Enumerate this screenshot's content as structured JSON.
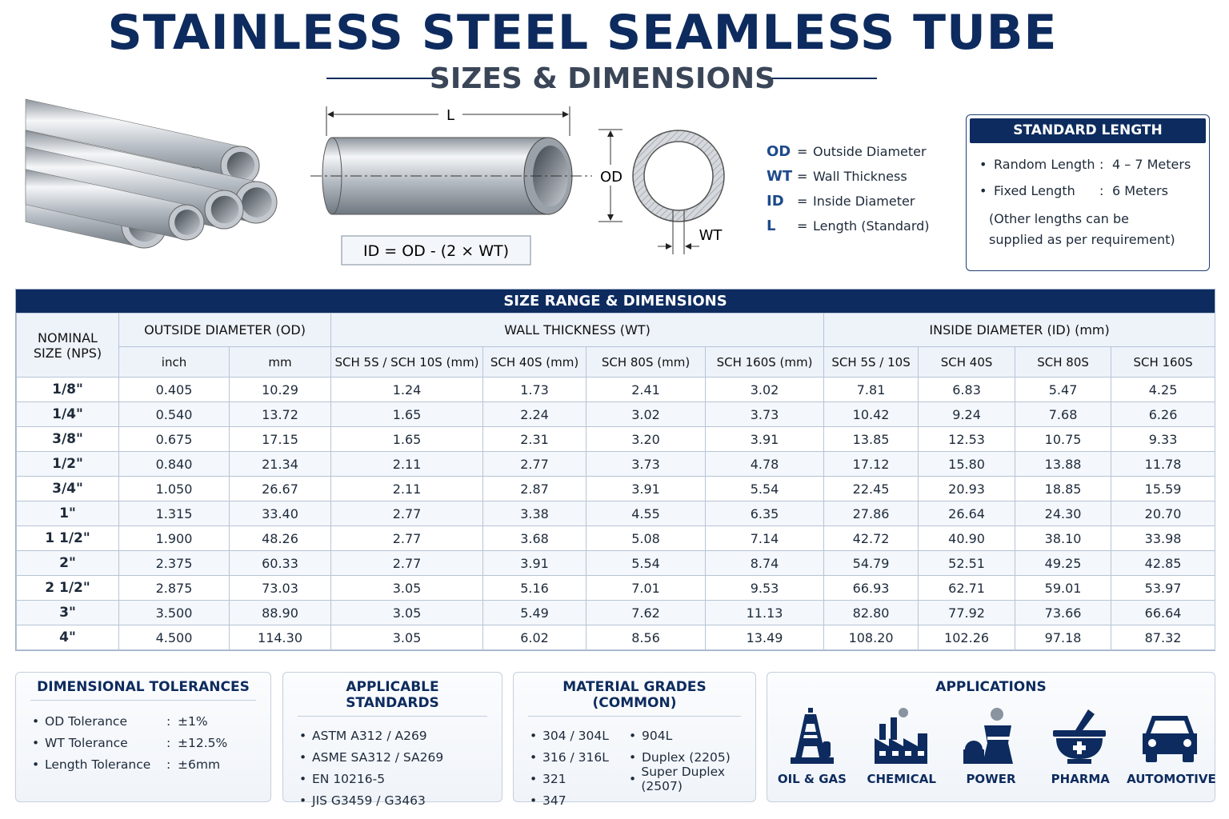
{
  "header": {
    "title": "STAINLESS STEEL SEAMLESS TUBE",
    "subtitle": "SIZES & DIMENSIONS"
  },
  "diagram": {
    "length_label": "L",
    "od_label": "OD",
    "wt_label": "WT",
    "formula": "ID = OD - (2 × WT)"
  },
  "legend": [
    {
      "abbr": "OD",
      "sign": "=",
      "text": "Outside Diameter"
    },
    {
      "abbr": "WT",
      "sign": "=",
      "text": "Wall Thickness"
    },
    {
      "abbr": "ID",
      "sign": "=",
      "text": "Inside Diameter"
    },
    {
      "abbr": "L",
      "sign": "=",
      "text": "Length (Standard)"
    }
  ],
  "standard_length": {
    "title": "STANDARD LENGTH",
    "items": [
      {
        "label": "Random Length",
        "sep": ":",
        "value": "4 – 7 Meters"
      },
      {
        "label": "Fixed Length",
        "sep": ":",
        "value": "6 Meters"
      }
    ],
    "note": "(Other lengths can be supplied as per requirement)"
  },
  "table": {
    "title": "SIZE RANGE & DIMENSIONS",
    "size_header": "NOMINAL SIZE (NPS)",
    "groups": [
      "OUTSIDE DIAMETER (OD)",
      "WALL THICKNESS (WT)",
      "INSIDE DIAMETER (ID) (mm)"
    ],
    "subheaders": [
      "inch",
      "mm",
      "SCH 5S / SCH 10S (mm)",
      "SCH 40S (mm)",
      "SCH 80S (mm)",
      "SCH 160S (mm)",
      "SCH 5S / 10S",
      "SCH 40S",
      "SCH 80S",
      "SCH 160S"
    ],
    "rows": [
      [
        "1/8\"",
        "0.405",
        "10.29",
        "1.24",
        "1.73",
        "2.41",
        "3.02",
        "7.81",
        "6.83",
        "5.47",
        "4.25"
      ],
      [
        "1/4\"",
        "0.540",
        "13.72",
        "1.65",
        "2.24",
        "3.02",
        "3.73",
        "10.42",
        "9.24",
        "7.68",
        "6.26"
      ],
      [
        "3/8\"",
        "0.675",
        "17.15",
        "1.65",
        "2.31",
        "3.20",
        "3.91",
        "13.85",
        "12.53",
        "10.75",
        "9.33"
      ],
      [
        "1/2\"",
        "0.840",
        "21.34",
        "2.11",
        "2.77",
        "3.73",
        "4.78",
        "17.12",
        "15.80",
        "13.88",
        "11.78"
      ],
      [
        "3/4\"",
        "1.050",
        "26.67",
        "2.11",
        "2.87",
        "3.91",
        "5.54",
        "22.45",
        "20.93",
        "18.85",
        "15.59"
      ],
      [
        "1\"",
        "1.315",
        "33.40",
        "2.77",
        "3.38",
        "4.55",
        "6.35",
        "27.86",
        "26.64",
        "24.30",
        "20.70"
      ],
      [
        "1 1/2\"",
        "1.900",
        "48.26",
        "2.77",
        "3.68",
        "5.08",
        "7.14",
        "42.72",
        "40.90",
        "38.10",
        "33.98"
      ],
      [
        "2\"",
        "2.375",
        "60.33",
        "2.77",
        "3.91",
        "5.54",
        "8.74",
        "54.79",
        "52.51",
        "49.25",
        "42.85"
      ],
      [
        "2 1/2\"",
        "2.875",
        "73.03",
        "3.05",
        "5.16",
        "7.01",
        "9.53",
        "66.93",
        "62.71",
        "59.01",
        "53.97"
      ],
      [
        "3\"",
        "3.500",
        "88.90",
        "3.05",
        "5.49",
        "7.62",
        "11.13",
        "82.80",
        "77.92",
        "73.66",
        "66.64"
      ],
      [
        "4\"",
        "4.500",
        "114.30",
        "3.05",
        "6.02",
        "8.56",
        "13.49",
        "108.20",
        "102.26",
        "97.18",
        "87.32"
      ]
    ]
  },
  "tolerances": {
    "title": "DIMENSIONAL TOLERANCES",
    "items": [
      {
        "label": "OD Tolerance",
        "sep": ":",
        "value": "±1%"
      },
      {
        "label": "WT Tolerance",
        "sep": ":",
        "value": "±12.5%"
      },
      {
        "label": "Length Tolerance",
        "sep": ":",
        "value": "±6mm"
      }
    ]
  },
  "standards": {
    "title": "APPLICABLE STANDARDS",
    "items": [
      "ASTM A312 / A269",
      "ASME SA312 / SA269",
      "EN 10216-5",
      "JIS G3459 / G3463"
    ]
  },
  "grades": {
    "title": "MATERIAL GRADES (COMMON)",
    "items": [
      "304 / 304L",
      "316 / 316L",
      "321",
      "347",
      "904L",
      "Duplex (2205)",
      "Super Duplex (2507)"
    ]
  },
  "applications": {
    "title": "APPLICATIONS",
    "items": [
      "OIL & GAS",
      "CHEMICAL",
      "POWER",
      "PHARMA",
      "AUTOMOTIVE"
    ]
  }
}
